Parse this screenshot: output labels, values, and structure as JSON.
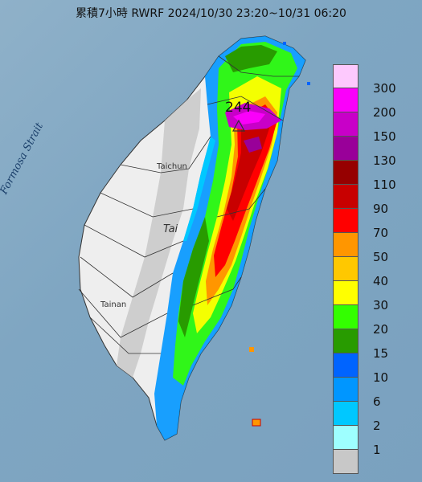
{
  "title": "累積7小時 RWRF 2024/10/30 23:20~10/31 06:20",
  "strait_label": "Formosa Strait",
  "places": {
    "taichung": "Taichun",
    "tainan": "Tainan",
    "tai": "Tai"
  },
  "max_value_label": "244",
  "legend": {
    "levels": [
      {
        "label": "300",
        "color": "#fdc9fd"
      },
      {
        "label": "200",
        "color": "#fa00fa"
      },
      {
        "label": "150",
        "color": "#c800c8"
      },
      {
        "label": "130",
        "color": "#990099"
      },
      {
        "label": "110",
        "color": "#960000"
      },
      {
        "label": "90",
        "color": "#c80000"
      },
      {
        "label": "70",
        "color": "#ff0000"
      },
      {
        "label": "50",
        "color": "#ff9600"
      },
      {
        "label": "40",
        "color": "#ffc800"
      },
      {
        "label": "30",
        "color": "#ffff00"
      },
      {
        "label": "20",
        "color": "#33ff00"
      },
      {
        "label": "15",
        "color": "#289b00"
      },
      {
        "label": "10",
        "color": "#0064ff"
      },
      {
        "label": "6",
        "color": "#0096ff"
      },
      {
        "label": "2",
        "color": "#00c8ff"
      },
      {
        "label": "1",
        "color": "#9effff"
      },
      {
        "label": "",
        "color": "#c8c8c8"
      }
    ]
  }
}
